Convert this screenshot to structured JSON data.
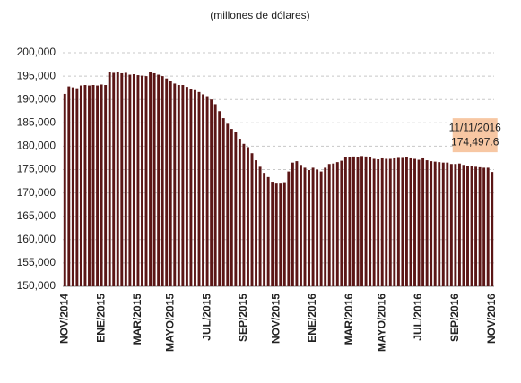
{
  "chart_data": {
    "type": "bar",
    "title": "(millones de dólares)",
    "categories": [
      "NOV/2014",
      null,
      null,
      null,
      null,
      null,
      null,
      null,
      null,
      "ENE/2015",
      null,
      null,
      null,
      null,
      null,
      null,
      null,
      null,
      "MAR/2015",
      null,
      null,
      null,
      null,
      null,
      null,
      null,
      "MAYO/2015",
      null,
      null,
      null,
      null,
      null,
      null,
      null,
      null,
      "JUL/2015",
      null,
      null,
      null,
      null,
      null,
      null,
      null,
      null,
      "SEP/2015",
      null,
      null,
      null,
      null,
      null,
      null,
      null,
      "NOV/2015",
      null,
      null,
      null,
      null,
      null,
      null,
      null,
      null,
      "ENE/2016",
      null,
      null,
      null,
      null,
      null,
      null,
      null,
      null,
      "MAR/2016",
      null,
      null,
      null,
      null,
      null,
      null,
      null,
      "MAYO/2016",
      null,
      null,
      null,
      null,
      null,
      null,
      null,
      null,
      "JUL/2016",
      null,
      null,
      null,
      null,
      null,
      null,
      null,
      null,
      "SEP/2016",
      null,
      null,
      null,
      null,
      null,
      null,
      null,
      null,
      "NOV/2016"
    ],
    "values": [
      191200,
      192800,
      192600,
      192400,
      193000,
      193100,
      193000,
      193100,
      193000,
      193200,
      193100,
      195800,
      195700,
      195800,
      195600,
      195700,
      195300,
      195400,
      195200,
      195100,
      195000,
      195900,
      195600,
      195300,
      195000,
      194500,
      194000,
      193400,
      193100,
      193100,
      192700,
      192300,
      192000,
      191600,
      191100,
      190700,
      190000,
      189000,
      187500,
      186000,
      184800,
      183700,
      183000,
      181600,
      180500,
      179800,
      178500,
      177000,
      175600,
      174300,
      173400,
      172400,
      172000,
      172000,
      172300,
      174600,
      176500,
      176800,
      176000,
      175400,
      174900,
      175400,
      175000,
      174600,
      175400,
      176200,
      176300,
      176600,
      176900,
      177600,
      177700,
      177800,
      177700,
      177900,
      177800,
      177600,
      177300,
      177200,
      177400,
      177300,
      177300,
      177400,
      177500,
      177500,
      177600,
      177400,
      177300,
      177100,
      177400,
      177000,
      176800,
      176700,
      176600,
      176500,
      176500,
      176200,
      176200,
      176300,
      176000,
      175800,
      175700,
      175600,
      175500,
      175400,
      175400,
      174497.6
    ],
    "value_labels": [
      null,
      null,
      null,
      null,
      null,
      null,
      null,
      null,
      null,
      null,
      null,
      null,
      null,
      null,
      null,
      null,
      null,
      null,
      null,
      null,
      null,
      null,
      null,
      null,
      null,
      null,
      null,
      null,
      null,
      null,
      null,
      null,
      null,
      null,
      null,
      null,
      null,
      null,
      null,
      null,
      null,
      null,
      null,
      null,
      null,
      null,
      null,
      null,
      null,
      null,
      null,
      null,
      null,
      null,
      null,
      null,
      null,
      null,
      null,
      null,
      null,
      null,
      null,
      null,
      null,
      null,
      null,
      null,
      null,
      null,
      null,
      null,
      null,
      null,
      null,
      null,
      null,
      null,
      null,
      null,
      null,
      null,
      null,
      null,
      null,
      null,
      null,
      null,
      null,
      null,
      null,
      null,
      null,
      null,
      null,
      null,
      null,
      null,
      null,
      null,
      null,
      null,
      null,
      null,
      null,
      "174,497.6"
    ],
    "annotation": "11/11/2016",
    "color": "#5b1616",
    "ylim": [
      150000,
      200000
    ],
    "yticks": [
      {
        "value": 150000,
        "label": "150,000"
      },
      {
        "value": 155000,
        "label": "155,000"
      },
      {
        "value": 160000,
        "label": "160,000"
      },
      {
        "value": 165000,
        "label": "165,000"
      },
      {
        "value": 170000,
        "label": "170,000"
      },
      {
        "value": 175000,
        "label": "175,000"
      },
      {
        "value": 180000,
        "label": "180,000"
      },
      {
        "value": 185000,
        "label": "185,000"
      },
      {
        "value": 190000,
        "label": "190,000"
      },
      {
        "value": 195000,
        "label": "195,000"
      },
      {
        "value": 200000,
        "label": "200,000"
      }
    ],
    "grid": true
  }
}
